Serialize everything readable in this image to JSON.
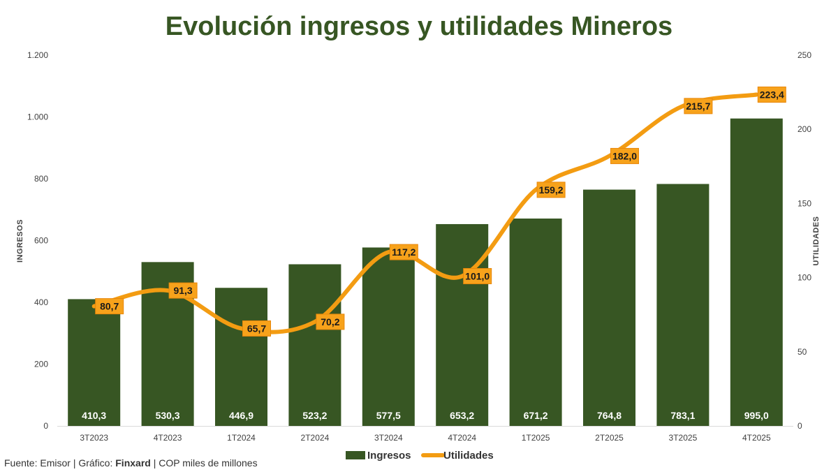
{
  "chart_data": {
    "type": "bar",
    "title": "Evolución ingresos y utilidades Mineros",
    "categories": [
      "3T2023",
      "4T2023",
      "1T2024",
      "2T2024",
      "3T2024",
      "4T2024",
      "1T2025",
      "2T2025",
      "3T2025",
      "4T2025"
    ],
    "series": [
      {
        "name": "Ingresos",
        "type": "bar",
        "axis": "left",
        "values": [
          410.3,
          530.3,
          446.9,
          523.2,
          577.5,
          653.2,
          671.2,
          764.8,
          783.1,
          995.0
        ],
        "labels": [
          "410,3",
          "530,3",
          "446,9",
          "523,2",
          "577,5",
          "653,2",
          "671,2",
          "764,8",
          "783,1",
          "995,0"
        ]
      },
      {
        "name": "Utilidades",
        "type": "line",
        "axis": "right",
        "values": [
          80.7,
          91.3,
          65.7,
          70.2,
          117.2,
          101.0,
          159.2,
          182.0,
          215.7,
          223.4
        ],
        "labels": [
          "80,7",
          "91,3",
          "65,7",
          "70,2",
          "117,2",
          "101,0",
          "159,2",
          "182,0",
          "215,7",
          "223,4"
        ]
      }
    ],
    "ylabel": "INGRESOS",
    "y2label": "UTILIDADES",
    "ylim": [
      0,
      1200
    ],
    "y2lim": [
      0,
      250
    ],
    "yticks": [
      0,
      200,
      400,
      600,
      800,
      1000,
      1200
    ],
    "ytick_labels": [
      "0",
      "200",
      "400",
      "600",
      "800",
      "1.000",
      "1.200"
    ],
    "y2ticks": [
      0,
      50,
      100,
      150,
      200,
      250
    ],
    "y2tick_labels": [
      "0",
      "50",
      "100",
      "150",
      "200",
      "250"
    ],
    "legend": [
      "Ingresos",
      "Utilidades"
    ],
    "legend_position": "bottom-center",
    "grid": false
  },
  "colors": {
    "title": "#375623",
    "bar": "#375623",
    "line": "#F39C12",
    "label_box": "#F7A21B"
  },
  "footer": {
    "prefix": "Fuente: Emisor | Gráfico: ",
    "brand": "Finxard",
    "suffix": " | COP miles de millones"
  }
}
